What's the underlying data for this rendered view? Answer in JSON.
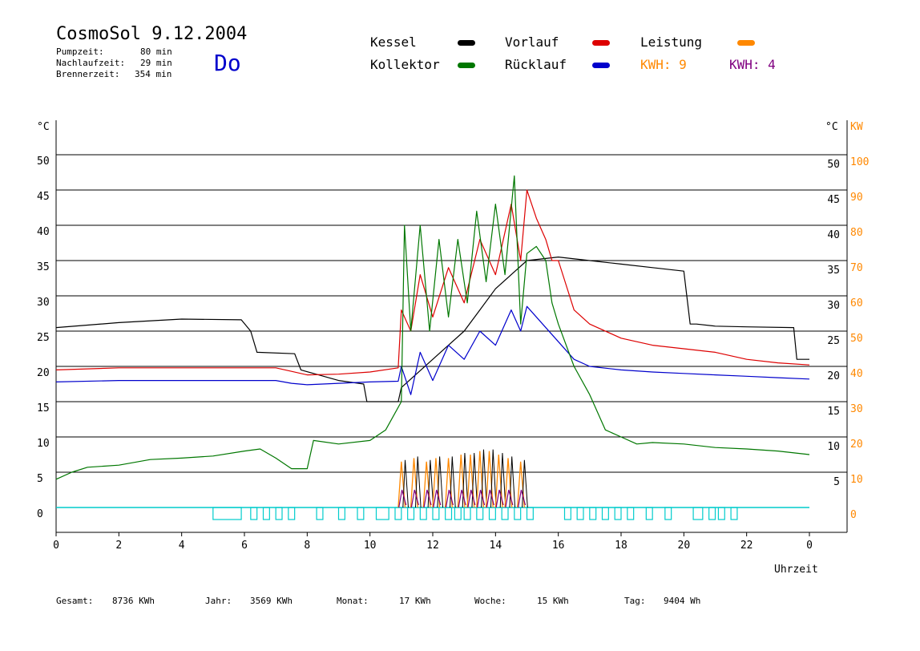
{
  "header": {
    "title": "CosmoSol 9.12.2004",
    "day": "Do",
    "stats": [
      {
        "label": "Pumpzeit:",
        "value": "80 min"
      },
      {
        "label": "Nachlaufzeit:",
        "value": "29 min"
      },
      {
        "label": "Brennerzeit:",
        "value": "354 min"
      }
    ]
  },
  "legend": {
    "items": [
      {
        "label": "Kessel",
        "color": "#000000"
      },
      {
        "label": "Vorlauf",
        "color": "#dd0000"
      },
      {
        "label": "Leistung",
        "color": "#ff8800"
      },
      {
        "label": "Kollektor",
        "color": "#007700"
      },
      {
        "label": "Rücklauf",
        "color": "#0000cc"
      }
    ],
    "kwh_orange": "KWH: 9",
    "kwh_purple": "KWH: 4",
    "kwh_orange_color": "#ff8800",
    "kwh_purple_color": "#800080"
  },
  "footer": {
    "items": [
      {
        "label": "Gesamt:",
        "value": "8736 KWh"
      },
      {
        "label": "Jahr:",
        "value": "3569 KWh"
      },
      {
        "label": "Monat:",
        "value": "17 KWh"
      },
      {
        "label": "Woche:",
        "value": "15 KWh"
      },
      {
        "label": "Tag:",
        "value": "9404 Wh"
      }
    ]
  },
  "chart_data": {
    "type": "line",
    "xlabel": "Uhrzeit",
    "ylabel_left": "°C",
    "ylabel_right_c": "°C",
    "ylabel_right_kw": "KW",
    "xlim": [
      0,
      24
    ],
    "ylim": [
      0,
      50
    ],
    "ylim_kw": [
      0,
      100
    ],
    "x_ticks": [
      "0",
      "2",
      "4",
      "6",
      "8",
      "10",
      "12",
      "14",
      "16",
      "18",
      "20",
      "22",
      "0"
    ],
    "y_ticks": [
      0,
      5,
      10,
      15,
      20,
      25,
      30,
      35,
      40,
      45,
      50
    ],
    "kw_ticks": [
      0,
      10,
      20,
      30,
      40,
      50,
      60,
      70,
      80,
      90,
      100
    ],
    "grid": true,
    "series": [
      {
        "name": "Kessel",
        "color": "#000000",
        "x": [
          0,
          2,
          4,
          5.9,
          6.2,
          6.4,
          7.6,
          7.8,
          8.2,
          9,
          9.8,
          9.9,
          10.9,
          11,
          11.5,
          12,
          12.5,
          13,
          13.5,
          14,
          14.5,
          15,
          16,
          17,
          18,
          19,
          20,
          20.2,
          20.4,
          21,
          22,
          23.5,
          23.6,
          24
        ],
        "y": [
          25.5,
          26.2,
          26.7,
          26.6,
          25,
          22,
          21.8,
          19.5,
          19,
          18,
          17.5,
          15,
          15,
          17,
          19,
          21,
          23,
          25,
          28,
          31,
          33,
          35,
          35.5,
          35,
          34.5,
          34,
          33.5,
          26,
          26,
          25.7,
          25.6,
          25.5,
          21,
          21
        ]
      },
      {
        "name": "Vorlauf",
        "color": "#dd0000",
        "x": [
          0,
          2,
          4,
          6,
          7,
          7.5,
          8,
          9,
          10,
          10.9,
          11,
          11.3,
          11.6,
          12,
          12.5,
          13,
          13.5,
          14,
          14.5,
          14.8,
          15,
          15.3,
          15.6,
          15.8,
          16,
          16.5,
          17,
          18,
          19,
          20,
          21,
          22,
          23,
          24
        ],
        "y": [
          19.5,
          19.8,
          19.8,
          19.8,
          19.8,
          19.3,
          18.8,
          18.9,
          19.2,
          19.8,
          28,
          25,
          33,
          27,
          34,
          29,
          38,
          33,
          43,
          35,
          45,
          41,
          38,
          35,
          35,
          28,
          26,
          24,
          23,
          22.5,
          22,
          21,
          20.5,
          20.2
        ]
      },
      {
        "name": "Rücklauf",
        "color": "#0000cc",
        "x": [
          0,
          2,
          4,
          6,
          7,
          7.5,
          8,
          9,
          10,
          10.9,
          11,
          11.3,
          11.6,
          12,
          12.5,
          13,
          13.5,
          14,
          14.5,
          14.8,
          15,
          15.5,
          16,
          16.5,
          17,
          18,
          19,
          20,
          21,
          22,
          23,
          24
        ],
        "y": [
          17.8,
          18,
          18,
          18,
          18,
          17.6,
          17.4,
          17.6,
          17.8,
          17.9,
          20,
          16,
          22,
          18,
          23,
          21,
          25,
          23,
          28,
          25,
          28.5,
          26,
          23.5,
          21,
          20,
          19.5,
          19.2,
          19,
          18.8,
          18.6,
          18.4,
          18.2
        ]
      },
      {
        "name": "Kollektor",
        "color": "#007700",
        "x": [
          0,
          0.5,
          1,
          2,
          3,
          4,
          5,
          6,
          6.5,
          7,
          7.5,
          8,
          8.2,
          9,
          10,
          10.5,
          11,
          11.1,
          11.3,
          11.6,
          11.9,
          12.2,
          12.5,
          12.8,
          13.1,
          13.4,
          13.7,
          14,
          14.3,
          14.6,
          14.8,
          15,
          15.3,
          15.6,
          15.8,
          16,
          16.5,
          17,
          17.5,
          18,
          18.5,
          19,
          20,
          21,
          22,
          23,
          24
        ],
        "y": [
          4,
          5,
          5.7,
          6,
          6.8,
          7,
          7.3,
          8,
          8.3,
          7,
          5.5,
          5.5,
          9.5,
          9,
          9.5,
          11,
          15,
          40,
          25,
          40,
          25,
          38,
          27,
          38,
          29,
          42,
          32,
          43,
          33,
          47,
          26,
          36,
          37,
          35,
          29,
          26,
          20,
          16,
          11,
          10,
          9,
          9.2,
          9,
          8.5,
          8.3,
          8,
          7.5
        ]
      }
    ],
    "leistung": {
      "name": "Leistung",
      "color": "#ff8800",
      "peaks_x": [
        11,
        11.4,
        11.8,
        12.1,
        12.5,
        12.9,
        13.2,
        13.5,
        13.8,
        14.1,
        14.4,
        14.8
      ],
      "peaks_y_kw": [
        13,
        14,
        13,
        14,
        14,
        15,
        15,
        16,
        16,
        15,
        14,
        13
      ]
    },
    "pump_segments": [
      [
        5,
        5.9
      ],
      [
        6.2,
        6.4
      ],
      [
        6.6,
        6.8
      ],
      [
        7,
        7.2
      ],
      [
        7.4,
        7.6
      ],
      [
        8.3,
        8.5
      ],
      [
        9,
        9.2
      ],
      [
        9.6,
        9.8
      ],
      [
        10.2,
        10.6
      ],
      [
        10.8,
        11
      ],
      [
        11.2,
        11.4
      ],
      [
        11.6,
        11.8
      ],
      [
        12,
        12.2
      ],
      [
        12.4,
        12.6
      ],
      [
        12.7,
        12.9
      ],
      [
        13,
        13.2
      ],
      [
        13.4,
        13.6
      ],
      [
        13.8,
        14
      ],
      [
        14.2,
        14.4
      ],
      [
        14.6,
        14.8
      ],
      [
        15,
        15.2
      ],
      [
        16.2,
        16.4
      ],
      [
        16.6,
        16.8
      ],
      [
        17,
        17.2
      ],
      [
        17.4,
        17.6
      ],
      [
        17.8,
        18
      ],
      [
        18.2,
        18.4
      ],
      [
        18.8,
        19
      ],
      [
        19.4,
        19.6
      ],
      [
        20.3,
        20.6
      ],
      [
        20.8,
        21
      ],
      [
        21.1,
        21.3
      ],
      [
        21.5,
        21.7
      ]
    ],
    "pump_color": "#00cccc"
  }
}
